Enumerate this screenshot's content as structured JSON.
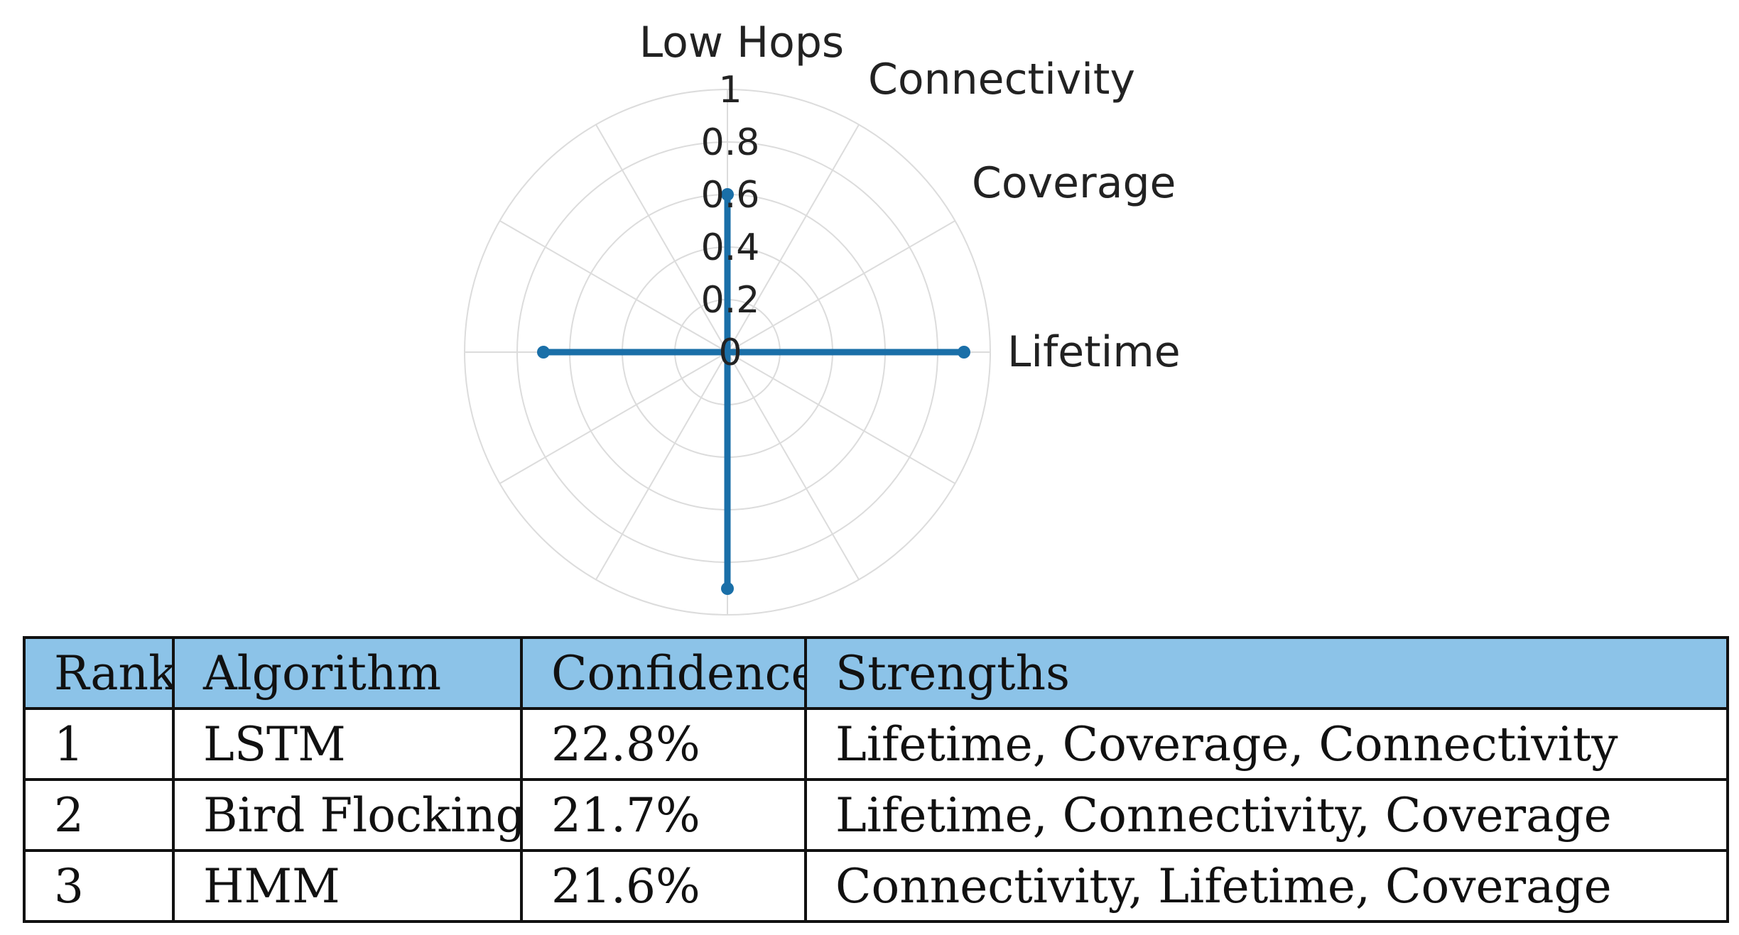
{
  "chart_data": {
    "type": "radar",
    "axes": [
      "Low Hops",
      "Connectivity",
      "Coverage",
      "Lifetime",
      "",
      "",
      "",
      "",
      "",
      "",
      "",
      ""
    ],
    "radial_ticks": [
      "0",
      "0.2",
      "0.4",
      "0.6",
      "0.8",
      "1"
    ],
    "range": [
      0,
      1
    ],
    "grid": true,
    "series": [
      {
        "color": "#1a6fa8",
        "values": [
          0.6,
          0.0,
          0.0,
          0.9,
          0.0,
          0.0,
          0.9,
          0.0,
          0.0,
          0.7,
          0.0,
          0.0
        ]
      }
    ]
  },
  "table": {
    "headers": [
      "Rank",
      "Algorithm",
      "Confidence",
      "Strengths"
    ],
    "rows": [
      [
        "1",
        "LSTM",
        "22.8%",
        "Lifetime, Coverage, Connectivity"
      ],
      [
        "2",
        "Bird Flocking",
        "21.7%",
        "Lifetime, Connectivity, Coverage"
      ],
      [
        "3",
        "HMM",
        "21.6%",
        "Connectivity, Lifetime, Coverage"
      ]
    ],
    "header_color": "#8cc3e8"
  }
}
